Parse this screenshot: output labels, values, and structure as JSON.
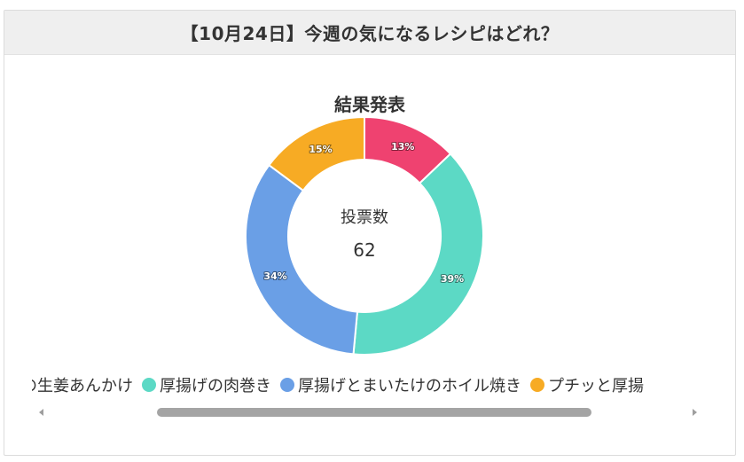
{
  "card": {
    "title": "【10月24日】今週の気になるレシピはどれ？"
  },
  "result": {
    "heading": "結果発表",
    "center_label": "投票数",
    "center_value": "62"
  },
  "chart_data": {
    "type": "pie",
    "variant": "doughnut",
    "total_votes": 62,
    "slices": [
      {
        "label": "…の生姜あんかけ",
        "percent": 13,
        "percent_label": "13%",
        "color": "#ef4270"
      },
      {
        "label": "厚揚げの肉巻き",
        "percent": 39,
        "percent_label": "39%",
        "color": "#5cd9c5"
      },
      {
        "label": "厚揚げとまいたけのホイル焼き",
        "percent": 34,
        "percent_label": "34%",
        "color": "#6a9fe6"
      },
      {
        "label": "プチッと厚…",
        "percent": 15,
        "percent_label": "15%",
        "color": "#f7ab24"
      }
    ],
    "legend_position": "bottom"
  },
  "legend": {
    "items": [
      {
        "text": "の生姜あんかけ",
        "color": "#ef4270",
        "show_dot": false
      },
      {
        "text": "厚揚げの肉巻き",
        "color": "#5cd9c5",
        "show_dot": true
      },
      {
        "text": "厚揚げとまいたけのホイル焼き",
        "color": "#6a9fe6",
        "show_dot": true
      },
      {
        "text": "プチッと厚揚",
        "color": "#f7ab24",
        "show_dot": true
      }
    ]
  },
  "icons": {
    "scroll_left": "caret-left-icon",
    "scroll_right": "caret-right-icon"
  }
}
